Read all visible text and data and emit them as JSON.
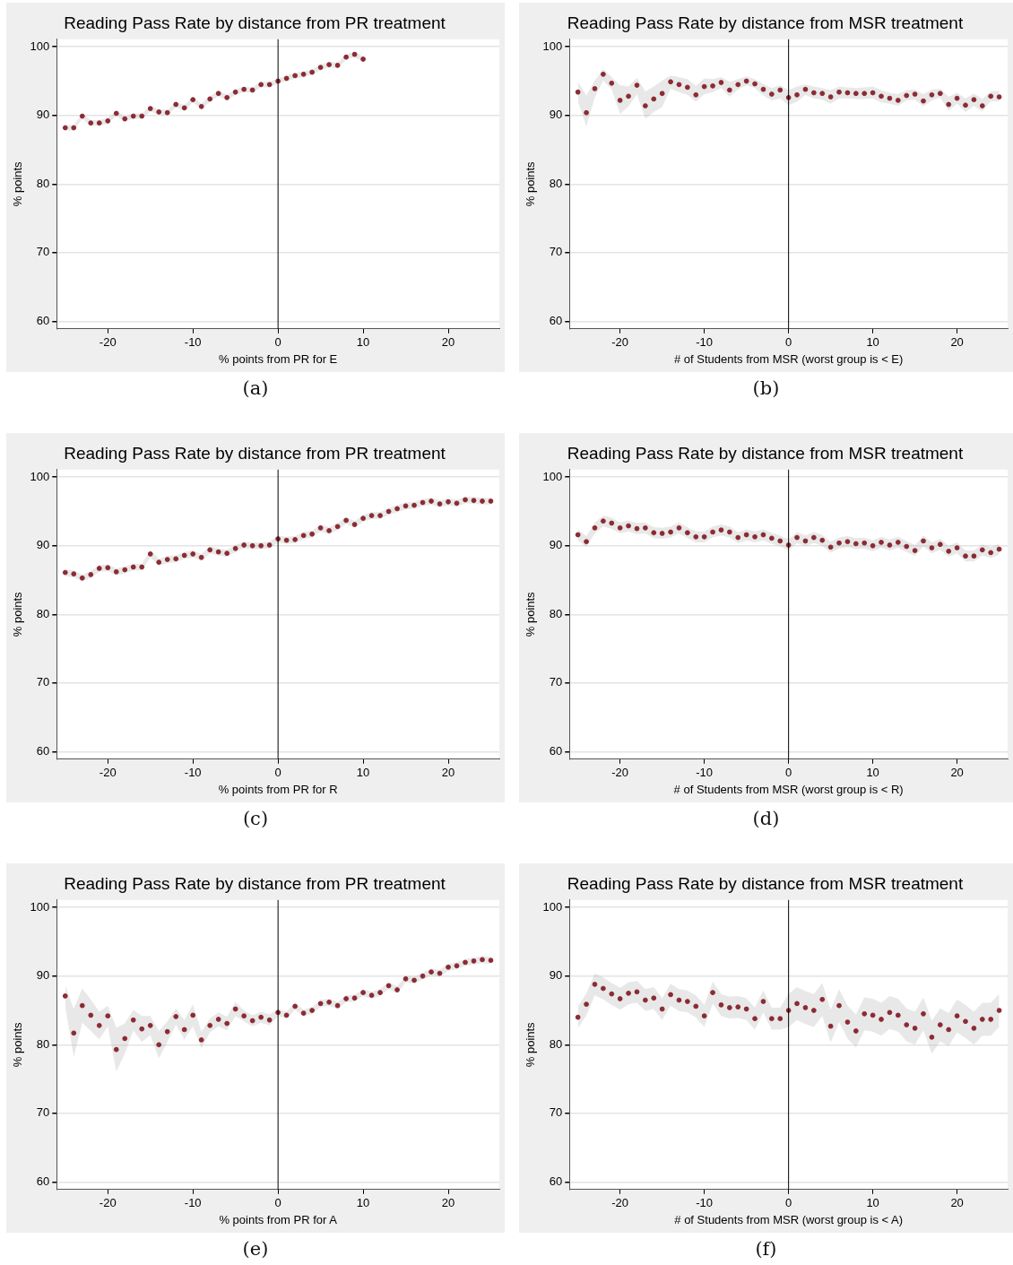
{
  "chart_data": [
    {
      "type": "scatter",
      "title": "Reading Pass Rate by distance from PR treatment",
      "xlabel": "% points from PR for E",
      "ylabel": "% points",
      "annotations": [
        "(a)"
      ],
      "x": [
        -25,
        -24,
        -23,
        -22,
        -21,
        -20,
        -19,
        -18,
        -17,
        -16,
        -15,
        -14,
        -13,
        -12,
        -11,
        -10,
        -9,
        -8,
        -7,
        -6,
        -5,
        -4,
        -3,
        -2,
        -1,
        0,
        1,
        2,
        3,
        4,
        5,
        6,
        7,
        8,
        9,
        10
      ],
      "xlim": [
        -26,
        26
      ],
      "ylim": [
        58.9,
        101.1
      ],
      "xticks": [
        -20,
        -10,
        0,
        10,
        20
      ],
      "yticks": [
        60,
        70,
        80,
        90,
        100
      ],
      "grid": "y",
      "marker": "circle",
      "ref_lines": [
        {
          "axis": "x",
          "value": 0,
          "color": "#000000"
        }
      ],
      "series": [
        {
          "color": "#8c2a33",
          "values": [
            88.2,
            88.2,
            89.9,
            88.9,
            88.9,
            89.2,
            90.3,
            89.5,
            89.9,
            89.9,
            91.0,
            90.5,
            90.4,
            91.6,
            91.1,
            92.3,
            91.3,
            92.4,
            93.2,
            92.6,
            93.4,
            93.8,
            93.7,
            94.5,
            94.5,
            95.0,
            95.4,
            95.8,
            96.0,
            96.3,
            97.0,
            97.4,
            97.3,
            98.5,
            98.9,
            98.2
          ],
          "lower": [
            87.8,
            87.8,
            89.5,
            88.5,
            88.5,
            88.8,
            89.9,
            89.1,
            89.5,
            89.5,
            90.6,
            90.1,
            90.0,
            91.2,
            90.7,
            91.9,
            90.9,
            92.0,
            92.8,
            92.2,
            93.0,
            93.4,
            93.3,
            94.1,
            94.1,
            94.6,
            95.0,
            95.4,
            95.6,
            95.9,
            96.6,
            97.0,
            96.9,
            98.1,
            98.5,
            97.8
          ],
          "upper": [
            88.6,
            88.6,
            90.3,
            89.3,
            89.3,
            89.6,
            90.7,
            89.9,
            90.3,
            90.3,
            91.4,
            90.9,
            90.8,
            92.0,
            91.5,
            92.7,
            91.7,
            92.8,
            93.6,
            93.0,
            93.8,
            94.2,
            94.1,
            94.9,
            94.9,
            95.4,
            95.8,
            96.2,
            96.4,
            96.7,
            97.4,
            97.8,
            97.7,
            98.9,
            99.3,
            98.6
          ]
        }
      ]
    },
    {
      "type": "scatter",
      "title": "Reading Pass Rate by distance from MSR treatment",
      "xlabel": "# of Students from MSR (worst group is < E)",
      "ylabel": "% points",
      "annotations": [
        "(b)"
      ],
      "x": [
        -25,
        -24,
        -23,
        -22,
        -21,
        -20,
        -19,
        -18,
        -17,
        -16,
        -15,
        -14,
        -13,
        -12,
        -11,
        -10,
        -9,
        -8,
        -7,
        -6,
        -5,
        -4,
        -3,
        -2,
        -1,
        0,
        1,
        2,
        3,
        4,
        5,
        6,
        7,
        8,
        9,
        10,
        11,
        12,
        13,
        14,
        15,
        16,
        17,
        18,
        19,
        20,
        21,
        22,
        23,
        24,
        25
      ],
      "xlim": [
        -26,
        26
      ],
      "ylim": [
        58.9,
        101.1
      ],
      "xticks": [
        -20,
        -10,
        0,
        10,
        20
      ],
      "yticks": [
        60,
        70,
        80,
        90,
        100
      ],
      "grid": "y",
      "marker": "circle",
      "ref_lines": [
        {
          "axis": "x",
          "value": 0,
          "color": "#000000"
        }
      ],
      "series": [
        {
          "color": "#8c2a33",
          "values": [
            93.4,
            90.4,
            93.9,
            96.0,
            94.7,
            92.2,
            92.8,
            94.4,
            91.4,
            92.4,
            93.2,
            94.9,
            94.5,
            94.1,
            93.0,
            94.2,
            94.3,
            94.8,
            93.7,
            94.5,
            95.0,
            94.6,
            93.8,
            93.1,
            93.7,
            92.6,
            93.0,
            93.8,
            93.3,
            93.2,
            92.7,
            93.4,
            93.3,
            93.2,
            93.2,
            93.3,
            92.8,
            92.5,
            92.2,
            92.9,
            93.1,
            92.1,
            93.0,
            93.2,
            91.6,
            92.5,
            91.5,
            92.3,
            91.4,
            92.8,
            92.7
          ],
          "lower": [
            92.0,
            88.4,
            92.6,
            95.1,
            93.8,
            90.2,
            91.3,
            93.1,
            89.5,
            90.5,
            91.2,
            93.9,
            93.4,
            93.0,
            92.0,
            93.1,
            93.4,
            94.0,
            92.7,
            93.8,
            94.4,
            94.0,
            92.9,
            92.2,
            92.5,
            91.5,
            92.0,
            93.0,
            92.5,
            92.3,
            91.7,
            92.5,
            92.5,
            92.4,
            92.4,
            92.5,
            91.9,
            91.7,
            91.4,
            92.2,
            92.3,
            91.3,
            92.2,
            92.6,
            90.7,
            91.7,
            90.5,
            91.4,
            90.6,
            92.1,
            92.0
          ],
          "upper": [
            94.9,
            92.9,
            95.1,
            96.8,
            95.6,
            94.4,
            94.2,
            95.5,
            93.5,
            94.2,
            95.1,
            95.8,
            95.6,
            95.3,
            94.3,
            95.4,
            95.3,
            95.6,
            94.9,
            95.3,
            95.7,
            95.3,
            94.6,
            94.0,
            94.4,
            93.7,
            94.2,
            94.5,
            94.2,
            94.0,
            93.7,
            94.2,
            94.1,
            94.0,
            94.1,
            94.2,
            93.7,
            93.3,
            93.1,
            93.7,
            93.8,
            93.1,
            93.8,
            93.9,
            92.7,
            93.3,
            92.5,
            93.2,
            92.4,
            93.5,
            93.6
          ]
        }
      ]
    },
    {
      "type": "scatter",
      "title": "Reading Pass Rate by distance from PR treatment",
      "xlabel": "% points from PR for R",
      "ylabel": "% points",
      "annotations": [
        "(c)"
      ],
      "x": [
        -25,
        -24,
        -23,
        -22,
        -21,
        -20,
        -19,
        -18,
        -17,
        -16,
        -15,
        -14,
        -13,
        -12,
        -11,
        -10,
        -9,
        -8,
        -7,
        -6,
        -5,
        -4,
        -3,
        -2,
        -1,
        0,
        1,
        2,
        3,
        4,
        5,
        6,
        7,
        8,
        9,
        10,
        11,
        12,
        13,
        14,
        15,
        16,
        17,
        18,
        19,
        20,
        21,
        22,
        23,
        24,
        25
      ],
      "xlim": [
        -26,
        26
      ],
      "ylim": [
        58.9,
        101.1
      ],
      "xticks": [
        -20,
        -10,
        0,
        10,
        20
      ],
      "yticks": [
        60,
        70,
        80,
        90,
        100
      ],
      "grid": "y",
      "marker": "circle",
      "ref_lines": [
        {
          "axis": "x",
          "value": 0,
          "color": "#000000"
        }
      ],
      "series": [
        {
          "color": "#8c2a33",
          "values": [
            86.1,
            85.9,
            85.3,
            85.8,
            86.7,
            86.8,
            86.2,
            86.5,
            86.9,
            86.9,
            88.8,
            87.6,
            88.0,
            88.1,
            88.6,
            88.8,
            88.3,
            89.4,
            89.1,
            88.9,
            89.6,
            90.1,
            90.0,
            90.0,
            90.1,
            91.0,
            90.8,
            90.9,
            91.5,
            91.7,
            92.6,
            92.2,
            92.8,
            93.7,
            93.1,
            94.0,
            94.4,
            94.4,
            95.0,
            95.4,
            95.8,
            95.9,
            96.3,
            96.5,
            96.1,
            96.4,
            96.2,
            96.7,
            96.6,
            96.5,
            96.5
          ],
          "lower": [
            85.6,
            85.4,
            84.8,
            85.3,
            86.2,
            86.3,
            85.7,
            86.0,
            86.4,
            86.4,
            88.3,
            87.1,
            87.5,
            87.6,
            88.1,
            88.3,
            87.8,
            88.9,
            88.6,
            88.4,
            89.1,
            89.6,
            89.5,
            89.5,
            89.6,
            90.5,
            90.3,
            90.4,
            91.0,
            91.2,
            92.1,
            91.7,
            92.3,
            93.2,
            92.6,
            93.5,
            93.9,
            93.9,
            94.5,
            94.9,
            95.3,
            95.4,
            95.8,
            96.0,
            95.6,
            95.9,
            95.7,
            96.2,
            96.1,
            96.0,
            96.0
          ],
          "upper": [
            86.6,
            86.4,
            85.8,
            86.3,
            87.2,
            87.3,
            86.7,
            87.0,
            87.4,
            87.4,
            89.3,
            88.1,
            88.5,
            88.6,
            89.1,
            89.3,
            88.8,
            89.9,
            89.6,
            89.4,
            90.1,
            90.6,
            90.5,
            90.5,
            90.6,
            91.5,
            91.3,
            91.4,
            92.0,
            92.2,
            93.1,
            92.7,
            93.3,
            94.2,
            93.6,
            94.5,
            94.9,
            94.9,
            95.5,
            95.9,
            96.3,
            96.4,
            96.8,
            97.0,
            96.6,
            96.9,
            96.7,
            97.2,
            97.1,
            97.0,
            97.0
          ]
        }
      ]
    },
    {
      "type": "scatter",
      "title": "Reading Pass Rate by distance from MSR treatment",
      "xlabel": "# of Students from MSR (worst group is < R)",
      "ylabel": "% points",
      "annotations": [
        "(d)"
      ],
      "x": [
        -25,
        -24,
        -23,
        -22,
        -21,
        -20,
        -19,
        -18,
        -17,
        -16,
        -15,
        -14,
        -13,
        -12,
        -11,
        -10,
        -9,
        -8,
        -7,
        -6,
        -5,
        -4,
        -3,
        -2,
        -1,
        0,
        1,
        2,
        3,
        4,
        5,
        6,
        7,
        8,
        9,
        10,
        11,
        12,
        13,
        14,
        15,
        16,
        17,
        18,
        19,
        20,
        21,
        22,
        23,
        24,
        25
      ],
      "xlim": [
        -26,
        26
      ],
      "ylim": [
        58.9,
        101.1
      ],
      "xticks": [
        -20,
        -10,
        0,
        10,
        20
      ],
      "yticks": [
        60,
        70,
        80,
        90,
        100
      ],
      "grid": "y",
      "marker": "circle",
      "ref_lines": [
        {
          "axis": "x",
          "value": 0,
          "color": "#000000"
        }
      ],
      "series": [
        {
          "color": "#8c2a33",
          "values": [
            91.6,
            90.6,
            92.6,
            93.6,
            93.3,
            92.6,
            92.9,
            92.5,
            92.6,
            91.9,
            91.8,
            92.0,
            92.6,
            91.9,
            91.3,
            91.3,
            92.0,
            92.3,
            92.0,
            91.2,
            91.6,
            91.3,
            91.6,
            91.1,
            90.7,
            90.1,
            91.2,
            90.7,
            91.2,
            90.8,
            89.8,
            90.4,
            90.6,
            90.3,
            90.4,
            90.0,
            90.5,
            90.1,
            90.5,
            89.9,
            89.3,
            90.7,
            89.7,
            90.2,
            89.2,
            89.7,
            88.5,
            88.5,
            89.4,
            89.0,
            89.5
          ],
          "lower": [
            90.8,
            89.8,
            91.8,
            92.8,
            92.5,
            91.8,
            92.1,
            91.7,
            91.8,
            91.1,
            91.0,
            91.2,
            91.8,
            91.1,
            90.5,
            90.5,
            91.2,
            91.5,
            91.2,
            90.4,
            90.8,
            90.5,
            90.8,
            90.3,
            89.9,
            89.3,
            90.4,
            89.9,
            90.4,
            90.0,
            89.0,
            89.6,
            89.8,
            89.5,
            89.6,
            89.2,
            89.7,
            89.3,
            89.7,
            89.1,
            88.5,
            89.9,
            88.9,
            89.4,
            88.4,
            88.9,
            87.7,
            87.7,
            88.6,
            88.2,
            88.7
          ],
          "upper": [
            92.4,
            91.4,
            93.4,
            94.4,
            94.1,
            93.4,
            93.7,
            93.3,
            93.4,
            92.7,
            92.6,
            92.8,
            93.4,
            92.7,
            92.1,
            92.1,
            92.8,
            93.1,
            92.8,
            92.0,
            92.4,
            92.1,
            92.4,
            91.9,
            91.5,
            90.9,
            92.0,
            91.5,
            92.0,
            91.6,
            90.6,
            91.2,
            91.4,
            91.1,
            91.2,
            90.8,
            91.3,
            90.9,
            91.3,
            90.7,
            90.1,
            91.5,
            90.5,
            91.0,
            90.0,
            90.5,
            89.3,
            89.3,
            90.2,
            89.8,
            90.3
          ]
        }
      ]
    },
    {
      "type": "scatter",
      "title": "Reading Pass Rate by distance from PR treatment",
      "xlabel": "% points from PR for A",
      "ylabel": "% points",
      "annotations": [
        "(e)"
      ],
      "x": [
        -25,
        -24,
        -23,
        -22,
        -21,
        -20,
        -19,
        -18,
        -17,
        -16,
        -15,
        -14,
        -13,
        -12,
        -11,
        -10,
        -9,
        -8,
        -7,
        -6,
        -5,
        -4,
        -3,
        -2,
        -1,
        0,
        1,
        2,
        3,
        4,
        5,
        6,
        7,
        8,
        9,
        10,
        11,
        12,
        13,
        14,
        15,
        16,
        17,
        18,
        19,
        20,
        21,
        22,
        23,
        24,
        25
      ],
      "xlim": [
        -26,
        26
      ],
      "ylim": [
        58.9,
        101.1
      ],
      "xticks": [
        -20,
        -10,
        0,
        10,
        20
      ],
      "yticks": [
        60,
        70,
        80,
        90,
        100
      ],
      "grid": "y",
      "marker": "circle",
      "ref_lines": [
        {
          "axis": "x",
          "value": 0,
          "color": "#000000"
        }
      ],
      "series": [
        {
          "color": "#8c2a33",
          "values": [
            87.1,
            81.7,
            85.7,
            84.3,
            82.8,
            84.2,
            79.3,
            80.9,
            83.6,
            82.3,
            82.8,
            80.0,
            81.9,
            84.1,
            82.2,
            84.3,
            80.7,
            82.8,
            83.7,
            83.1,
            85.2,
            84.2,
            83.5,
            84.0,
            83.6,
            84.7,
            84.3,
            85.6,
            84.6,
            85.0,
            86.0,
            86.2,
            85.7,
            86.7,
            86.8,
            87.6,
            87.2,
            87.6,
            88.6,
            88.0,
            89.6,
            89.4,
            90.0,
            90.6,
            90.4,
            91.3,
            91.5,
            92.0,
            92.2,
            92.4,
            92.3
          ],
          "lower": [
            85.6,
            78.2,
            83.2,
            82.0,
            80.8,
            82.7,
            76.1,
            78.7,
            82.1,
            80.4,
            81.4,
            78.0,
            80.4,
            82.9,
            80.8,
            82.7,
            79.5,
            81.8,
            82.7,
            82.1,
            84.2,
            83.4,
            82.7,
            83.2,
            82.8,
            84.2,
            83.8,
            85.1,
            84.1,
            84.5,
            85.5,
            85.7,
            85.2,
            86.2,
            86.3,
            87.1,
            86.7,
            87.1,
            88.1,
            87.5,
            89.1,
            88.9,
            89.5,
            90.1,
            89.9,
            90.8,
            91.0,
            91.5,
            91.7,
            91.9,
            91.8
          ],
          "upper": [
            88.6,
            85.2,
            88.2,
            86.6,
            84.8,
            85.7,
            82.5,
            83.1,
            85.1,
            84.2,
            84.2,
            82.0,
            83.4,
            85.3,
            83.6,
            85.9,
            81.9,
            83.8,
            84.7,
            84.1,
            86.2,
            85.0,
            84.3,
            84.8,
            84.4,
            85.2,
            84.8,
            86.1,
            85.1,
            85.5,
            86.5,
            86.7,
            86.2,
            87.2,
            87.3,
            88.1,
            87.7,
            88.1,
            89.1,
            88.5,
            90.1,
            89.9,
            90.5,
            91.1,
            90.9,
            91.8,
            92.0,
            92.5,
            92.7,
            92.9,
            92.8
          ]
        }
      ]
    },
    {
      "type": "scatter",
      "title": "Reading Pass Rate by distance from MSR treatment",
      "xlabel": "# of Students from MSR (worst group is < A)",
      "ylabel": "% points",
      "annotations": [
        "(f)"
      ],
      "x": [
        -25,
        -24,
        -23,
        -22,
        -21,
        -20,
        -19,
        -18,
        -17,
        -16,
        -15,
        -14,
        -13,
        -12,
        -11,
        -10,
        -9,
        -8,
        -7,
        -6,
        -5,
        -4,
        -3,
        -2,
        -1,
        0,
        1,
        2,
        3,
        4,
        5,
        6,
        7,
        8,
        9,
        10,
        11,
        12,
        13,
        14,
        15,
        16,
        17,
        18,
        19,
        20,
        21,
        22,
        23,
        24,
        25
      ],
      "xlim": [
        -26,
        26
      ],
      "ylim": [
        58.9,
        101.1
      ],
      "xticks": [
        -20,
        -10,
        0,
        10,
        20
      ],
      "yticks": [
        60,
        70,
        80,
        90,
        100
      ],
      "grid": "y",
      "marker": "circle",
      "ref_lines": [
        {
          "axis": "x",
          "value": 0,
          "color": "#000000"
        }
      ],
      "series": [
        {
          "color": "#8c2a33",
          "values": [
            84.0,
            85.9,
            88.8,
            88.2,
            87.4,
            86.7,
            87.5,
            87.7,
            86.5,
            86.8,
            85.2,
            87.3,
            86.5,
            86.3,
            85.6,
            84.2,
            87.6,
            85.8,
            85.4,
            85.5,
            85.2,
            83.8,
            86.3,
            83.8,
            83.8,
            85.0,
            86.0,
            85.4,
            85.0,
            86.6,
            82.7,
            85.7,
            83.3,
            82.0,
            84.5,
            84.3,
            83.7,
            84.7,
            84.3,
            82.9,
            82.4,
            84.5,
            81.1,
            82.9,
            82.2,
            84.2,
            83.4,
            82.4,
            83.7,
            83.7,
            85.0
          ],
          "lower": [
            82.4,
            84.3,
            87.2,
            86.6,
            85.8,
            85.1,
            85.9,
            86.1,
            84.9,
            85.2,
            83.6,
            85.7,
            84.9,
            84.7,
            84.0,
            82.6,
            86.0,
            84.2,
            83.8,
            83.9,
            83.6,
            82.2,
            84.7,
            82.2,
            82.2,
            82.6,
            83.6,
            83.0,
            82.6,
            84.2,
            80.3,
            83.3,
            80.9,
            79.6,
            82.1,
            81.9,
            81.3,
            82.3,
            81.9,
            80.5,
            80.0,
            82.1,
            78.7,
            80.5,
            79.8,
            81.8,
            81.0,
            80.0,
            81.3,
            81.3,
            82.6
          ],
          "upper": [
            85.6,
            87.5,
            90.4,
            89.8,
            89.0,
            88.3,
            89.1,
            89.3,
            88.1,
            88.4,
            86.8,
            88.9,
            88.1,
            87.9,
            87.2,
            85.8,
            89.2,
            87.4,
            87.0,
            87.1,
            86.8,
            85.4,
            87.9,
            85.4,
            85.4,
            87.4,
            88.4,
            87.8,
            87.4,
            89.0,
            85.1,
            88.1,
            85.7,
            84.4,
            86.9,
            86.7,
            86.1,
            87.1,
            86.7,
            85.3,
            84.8,
            86.9,
            83.5,
            85.3,
            84.6,
            86.6,
            85.8,
            84.8,
            86.1,
            86.1,
            87.4
          ]
        }
      ]
    }
  ]
}
